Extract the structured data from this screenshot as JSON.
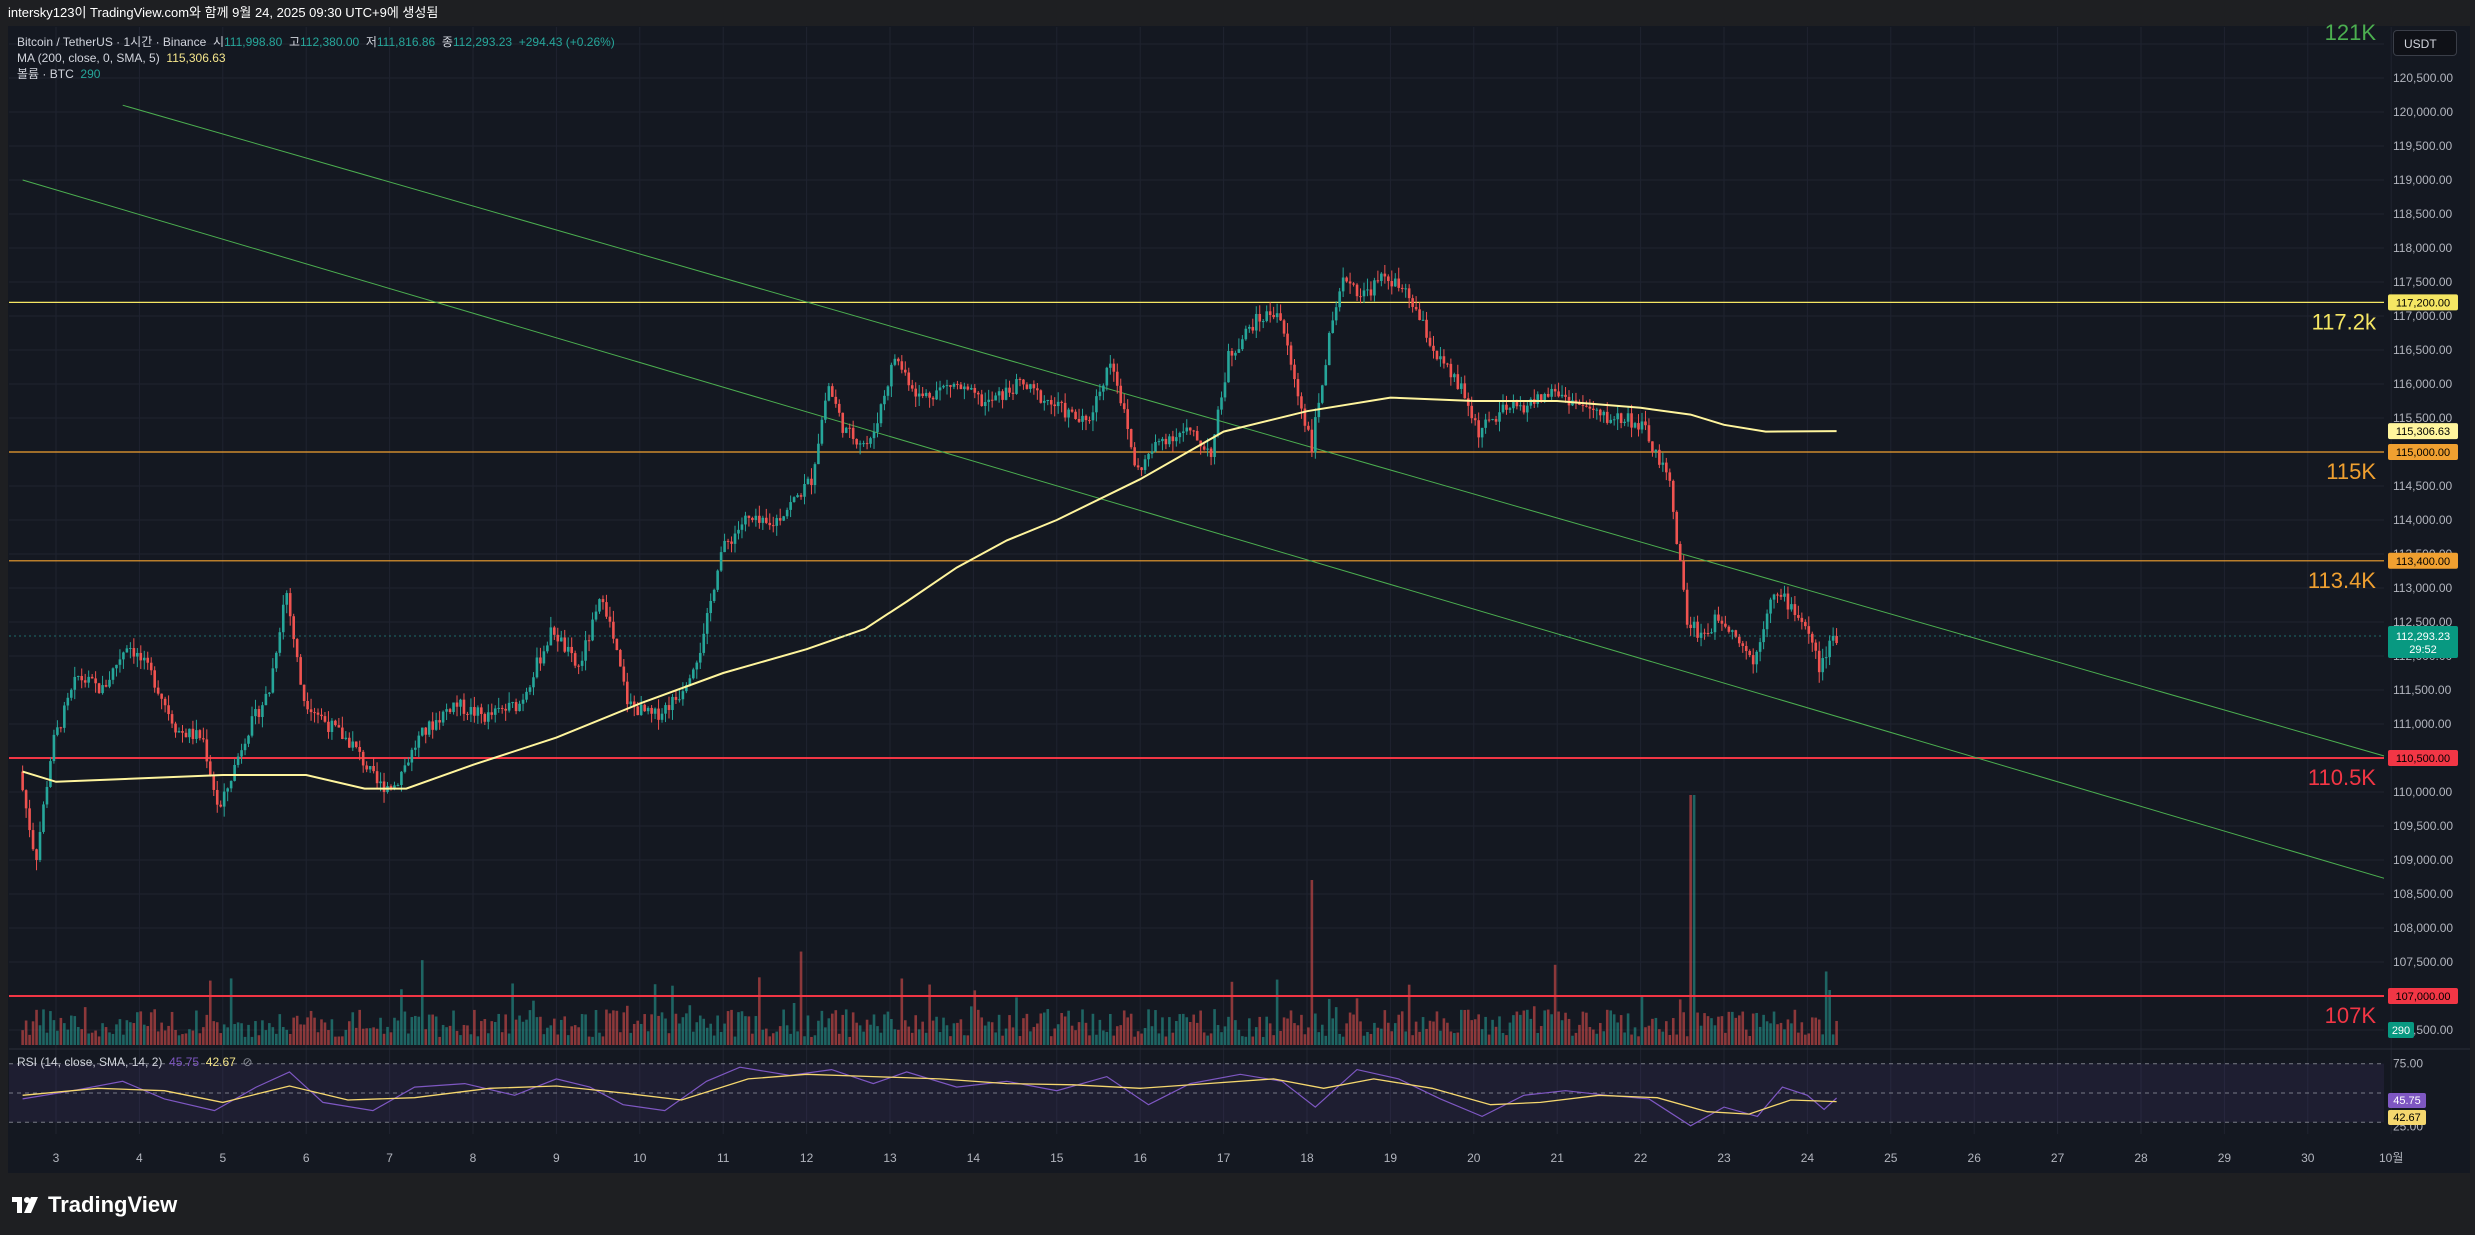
{
  "header": {
    "caption": "intersky123이 TradingView.com와 함께 9월 24, 2025 09:30 UTC+9에 생성됨"
  },
  "legend": {
    "symbol": "Bitcoin / TetherUS · 1시간 · Binance",
    "o_label": "시",
    "o_value": "111,998.80",
    "h_label": "고",
    "h_value": "112,380.00",
    "l_label": "저",
    "l_value": "111,816.86",
    "c_label": "종",
    "c_value": "112,293.23",
    "change": "+294.43 (+0.26%)",
    "ma_label": "MA (200, close, 0, SMA, 5)",
    "ma_value": "115,306.63",
    "vol_label": "볼륨 · BTC",
    "vol_value": "290",
    "rsi_label": "RSI (14, close, SMA, 14, 2)",
    "rsi_value": "45.75",
    "rsi_ma_value": "42.67"
  },
  "currency_button": "USDT",
  "brand": "TradingView",
  "colors": {
    "background": "#141821",
    "up": "#26a69a",
    "down": "#ef5350",
    "ma": "#fff59d",
    "trend": "#4caf50",
    "level_yellow": "#f5e663",
    "level_orange": "#f0a030",
    "level_red": "#f23645",
    "rsi": "#7e57c2"
  },
  "chart_data": {
    "type": "candlestick",
    "timeframe": "1h",
    "x_range": [
      "3",
      "10"
    ],
    "ylim": [
      106250,
      121250
    ],
    "yticks": [
      106500,
      107000,
      107500,
      108000,
      108500,
      109000,
      109500,
      110000,
      110500,
      111000,
      111500,
      112000,
      112500,
      113000,
      113500,
      114000,
      114500,
      115000,
      115500,
      116000,
      116500,
      117000,
      117500,
      118000,
      118500,
      119000,
      119500,
      120000,
      120500,
      121000
    ],
    "ytick_labels": [
      "106,500.00",
      "107,000.00",
      "107,500.00",
      "108,000.00",
      "108,500.00",
      "109,000.00",
      "109,500.00",
      "110,000.00",
      "110,500.00",
      "111,000.00",
      "111,500.00",
      "112,000.00",
      "112,500.00",
      "113,000.00",
      "113,500.00",
      "114,000.00",
      "114,500.00",
      "115,000.00",
      "115,500.00",
      "116,000.00",
      "116,500.00",
      "117,000.00",
      "117,500.00",
      "118,000.00",
      "118,500.00",
      "119,000.00",
      "119,500.00",
      "120,000.00",
      "120,500.00",
      "121,000.00"
    ],
    "xticks": [
      "3",
      "4",
      "5",
      "6",
      "7",
      "8",
      "9",
      "10",
      "11",
      "12",
      "13",
      "14",
      "15",
      "16",
      "17",
      "18",
      "19",
      "20",
      "21",
      "22",
      "23",
      "24",
      "25",
      "26",
      "27",
      "28",
      "29",
      "30",
      "10월"
    ],
    "price_path": [
      {
        "day": 2.6,
        "price": 110300
      },
      {
        "day": 2.8,
        "price": 109000
      },
      {
        "day": 3.0,
        "price": 110700
      },
      {
        "day": 3.3,
        "price": 111700
      },
      {
        "day": 3.6,
        "price": 111500
      },
      {
        "day": 3.9,
        "price": 112200
      },
      {
        "day": 4.2,
        "price": 111700
      },
      {
        "day": 4.5,
        "price": 110900
      },
      {
        "day": 4.8,
        "price": 110800
      },
      {
        "day": 5.0,
        "price": 109700
      },
      {
        "day": 5.3,
        "price": 110800
      },
      {
        "day": 5.6,
        "price": 111500
      },
      {
        "day": 5.8,
        "price": 113000
      },
      {
        "day": 6.0,
        "price": 111400
      },
      {
        "day": 6.3,
        "price": 111000
      },
      {
        "day": 6.6,
        "price": 110700
      },
      {
        "day": 6.9,
        "price": 110100
      },
      {
        "day": 7.1,
        "price": 110100
      },
      {
        "day": 7.4,
        "price": 110800
      },
      {
        "day": 7.8,
        "price": 111300
      },
      {
        "day": 8.2,
        "price": 111100
      },
      {
        "day": 8.6,
        "price": 111300
      },
      {
        "day": 9.0,
        "price": 112400
      },
      {
        "day": 9.3,
        "price": 111800
      },
      {
        "day": 9.6,
        "price": 112900
      },
      {
        "day": 9.9,
        "price": 111300
      },
      {
        "day": 10.2,
        "price": 111100
      },
      {
        "day": 10.5,
        "price": 111400
      },
      {
        "day": 10.8,
        "price": 112200
      },
      {
        "day": 11.0,
        "price": 113500
      },
      {
        "day": 11.3,
        "price": 114000
      },
      {
        "day": 11.6,
        "price": 113900
      },
      {
        "day": 11.9,
        "price": 114300
      },
      {
        "day": 12.1,
        "price": 114600
      },
      {
        "day": 12.3,
        "price": 116000
      },
      {
        "day": 12.5,
        "price": 115300
      },
      {
        "day": 12.8,
        "price": 115100
      },
      {
        "day": 13.1,
        "price": 116400
      },
      {
        "day": 13.4,
        "price": 115800
      },
      {
        "day": 13.8,
        "price": 116000
      },
      {
        "day": 14.2,
        "price": 115700
      },
      {
        "day": 14.6,
        "price": 116000
      },
      {
        "day": 15.0,
        "price": 115700
      },
      {
        "day": 15.4,
        "price": 115400
      },
      {
        "day": 15.7,
        "price": 116400
      },
      {
        "day": 16.0,
        "price": 114700
      },
      {
        "day": 16.3,
        "price": 115200
      },
      {
        "day": 16.6,
        "price": 115300
      },
      {
        "day": 16.9,
        "price": 115000
      },
      {
        "day": 17.1,
        "price": 116400
      },
      {
        "day": 17.4,
        "price": 116900
      },
      {
        "day": 17.7,
        "price": 117100
      },
      {
        "day": 17.9,
        "price": 116000
      },
      {
        "day": 18.1,
        "price": 115100
      },
      {
        "day": 18.3,
        "price": 116600
      },
      {
        "day": 18.5,
        "price": 117600
      },
      {
        "day": 18.7,
        "price": 117300
      },
      {
        "day": 19.0,
        "price": 117600
      },
      {
        "day": 19.3,
        "price": 117200
      },
      {
        "day": 19.6,
        "price": 116400
      },
      {
        "day": 19.9,
        "price": 115900
      },
      {
        "day": 20.1,
        "price": 115300
      },
      {
        "day": 20.4,
        "price": 115600
      },
      {
        "day": 20.7,
        "price": 115700
      },
      {
        "day": 21.0,
        "price": 115900
      },
      {
        "day": 21.3,
        "price": 115700
      },
      {
        "day": 21.6,
        "price": 115500
      },
      {
        "day": 21.9,
        "price": 115500
      },
      {
        "day": 22.1,
        "price": 115300
      },
      {
        "day": 22.4,
        "price": 114500
      },
      {
        "day": 22.6,
        "price": 112500
      },
      {
        "day": 22.8,
        "price": 112300
      },
      {
        "day": 23.0,
        "price": 112600
      },
      {
        "day": 23.2,
        "price": 112300
      },
      {
        "day": 23.4,
        "price": 111900
      },
      {
        "day": 23.6,
        "price": 112900
      },
      {
        "day": 23.8,
        "price": 112800
      },
      {
        "day": 24.0,
        "price": 112500
      },
      {
        "day": 24.2,
        "price": 111800
      },
      {
        "day": 24.35,
        "price": 112293
      }
    ],
    "ma200": [
      {
        "day": 2.6,
        "price": 110300
      },
      {
        "day": 3.0,
        "price": 110150
      },
      {
        "day": 4.0,
        "price": 110200
      },
      {
        "day": 5.0,
        "price": 110250
      },
      {
        "day": 6.0,
        "price": 110250
      },
      {
        "day": 6.7,
        "price": 110050
      },
      {
        "day": 7.2,
        "price": 110050
      },
      {
        "day": 8.0,
        "price": 110400
      },
      {
        "day": 9.0,
        "price": 110800
      },
      {
        "day": 10.0,
        "price": 111300
      },
      {
        "day": 11.0,
        "price": 111750
      },
      {
        "day": 12.0,
        "price": 112100
      },
      {
        "day": 12.7,
        "price": 112400
      },
      {
        "day": 13.2,
        "price": 112800
      },
      {
        "day": 13.8,
        "price": 113300
      },
      {
        "day": 14.4,
        "price": 113700
      },
      {
        "day": 15.0,
        "price": 114000
      },
      {
        "day": 16.0,
        "price": 114600
      },
      {
        "day": 17.0,
        "price": 115300
      },
      {
        "day": 18.0,
        "price": 115600
      },
      {
        "day": 19.0,
        "price": 115800
      },
      {
        "day": 20.0,
        "price": 115750
      },
      {
        "day": 21.0,
        "price": 115750
      },
      {
        "day": 22.0,
        "price": 115650
      },
      {
        "day": 22.6,
        "price": 115550
      },
      {
        "day": 23.0,
        "price": 115400
      },
      {
        "day": 23.5,
        "price": 115300
      },
      {
        "day": 24.35,
        "price": 115306.63
      }
    ],
    "levels": [
      {
        "price": 117200,
        "price_label": "117,200.00",
        "label": "117.2k",
        "color": "#f5e663"
      },
      {
        "price": 115000,
        "price_label": "115,000.00",
        "label": "115K",
        "color": "#f0a030"
      },
      {
        "price": 113400,
        "price_label": "113,400.00",
        "label": "113.4K",
        "color": "#f0a030"
      },
      {
        "price": 110500,
        "price_label": "110,500.00",
        "label": "110.5K",
        "color": "#f23645"
      },
      {
        "price": 107000,
        "price_label": "107,000.00",
        "label": "107K",
        "color": "#f23645"
      }
    ],
    "top_label": {
      "label": "121K",
      "color": "#4caf50"
    },
    "trendlines": [
      {
        "from": {
          "day": 2.6,
          "price": 119000
        },
        "to": {
          "day": 31.0,
          "price": 108700
        }
      },
      {
        "from": {
          "day": 3.8,
          "price": 120100
        },
        "to": {
          "day": 31.0,
          "price": 110500
        }
      }
    ],
    "last_price": {
      "price": 112293.23,
      "label": "112,293.23",
      "countdown": "29:52"
    },
    "ma_tag": {
      "price": 115306.63,
      "label": "115,306.63"
    },
    "volume_tag": "290",
    "rsi": {
      "levels": [
        75,
        50,
        25
      ],
      "level_labels": [
        "75.00",
        "45.75",
        "42.67",
        "25.00"
      ],
      "rsi_value_label": "45.75",
      "rsi_ma_label": "42.67",
      "rsi_path": [
        {
          "day": 2.6,
          "v": 45
        },
        {
          "day": 3.2,
          "v": 52
        },
        {
          "day": 3.8,
          "v": 60
        },
        {
          "day": 4.3,
          "v": 45
        },
        {
          "day": 4.9,
          "v": 35
        },
        {
          "day": 5.4,
          "v": 55
        },
        {
          "day": 5.8,
          "v": 68
        },
        {
          "day": 6.2,
          "v": 42
        },
        {
          "day": 6.8,
          "v": 35
        },
        {
          "day": 7.3,
          "v": 55
        },
        {
          "day": 7.9,
          "v": 58
        },
        {
          "day": 8.5,
          "v": 48
        },
        {
          "day": 9.0,
          "v": 62
        },
        {
          "day": 9.4,
          "v": 55
        },
        {
          "day": 9.8,
          "v": 40
        },
        {
          "day": 10.3,
          "v": 35
        },
        {
          "day": 10.8,
          "v": 60
        },
        {
          "day": 11.2,
          "v": 72
        },
        {
          "day": 11.8,
          "v": 65
        },
        {
          "day": 12.3,
          "v": 70
        },
        {
          "day": 12.8,
          "v": 58
        },
        {
          "day": 13.2,
          "v": 68
        },
        {
          "day": 13.8,
          "v": 55
        },
        {
          "day": 14.4,
          "v": 60
        },
        {
          "day": 15.0,
          "v": 52
        },
        {
          "day": 15.6,
          "v": 64
        },
        {
          "day": 16.1,
          "v": 40
        },
        {
          "day": 16.6,
          "v": 58
        },
        {
          "day": 17.2,
          "v": 66
        },
        {
          "day": 17.7,
          "v": 60
        },
        {
          "day": 18.1,
          "v": 38
        },
        {
          "day": 18.6,
          "v": 70
        },
        {
          "day": 19.1,
          "v": 62
        },
        {
          "day": 19.6,
          "v": 45
        },
        {
          "day": 20.1,
          "v": 30
        },
        {
          "day": 20.6,
          "v": 48
        },
        {
          "day": 21.1,
          "v": 52
        },
        {
          "day": 21.6,
          "v": 48
        },
        {
          "day": 22.1,
          "v": 45
        },
        {
          "day": 22.6,
          "v": 22
        },
        {
          "day": 23.0,
          "v": 38
        },
        {
          "day": 23.4,
          "v": 30
        },
        {
          "day": 23.7,
          "v": 55
        },
        {
          "day": 24.0,
          "v": 48
        },
        {
          "day": 24.2,
          "v": 36
        },
        {
          "day": 24.35,
          "v": 45.75
        }
      ],
      "rsi_ma_path": [
        {
          "day": 2.6,
          "v": 48
        },
        {
          "day": 3.5,
          "v": 54
        },
        {
          "day": 4.3,
          "v": 52
        },
        {
          "day": 5.0,
          "v": 42
        },
        {
          "day": 5.8,
          "v": 56
        },
        {
          "day": 6.5,
          "v": 44
        },
        {
          "day": 7.3,
          "v": 46
        },
        {
          "day": 8.2,
          "v": 54
        },
        {
          "day": 9.0,
          "v": 56
        },
        {
          "day": 9.8,
          "v": 50
        },
        {
          "day": 10.5,
          "v": 44
        },
        {
          "day": 11.3,
          "v": 62
        },
        {
          "day": 12.0,
          "v": 66
        },
        {
          "day": 12.8,
          "v": 64
        },
        {
          "day": 13.6,
          "v": 62
        },
        {
          "day": 14.4,
          "v": 58
        },
        {
          "day": 15.2,
          "v": 57
        },
        {
          "day": 16.0,
          "v": 54
        },
        {
          "day": 16.8,
          "v": 58
        },
        {
          "day": 17.6,
          "v": 62
        },
        {
          "day": 18.2,
          "v": 54
        },
        {
          "day": 18.8,
          "v": 62
        },
        {
          "day": 19.5,
          "v": 54
        },
        {
          "day": 20.2,
          "v": 40
        },
        {
          "day": 20.8,
          "v": 42
        },
        {
          "day": 21.5,
          "v": 48
        },
        {
          "day": 22.2,
          "v": 46
        },
        {
          "day": 22.8,
          "v": 34
        },
        {
          "day": 23.3,
          "v": 32
        },
        {
          "day": 23.8,
          "v": 44
        },
        {
          "day": 24.35,
          "v": 42.67
        }
      ]
    }
  }
}
